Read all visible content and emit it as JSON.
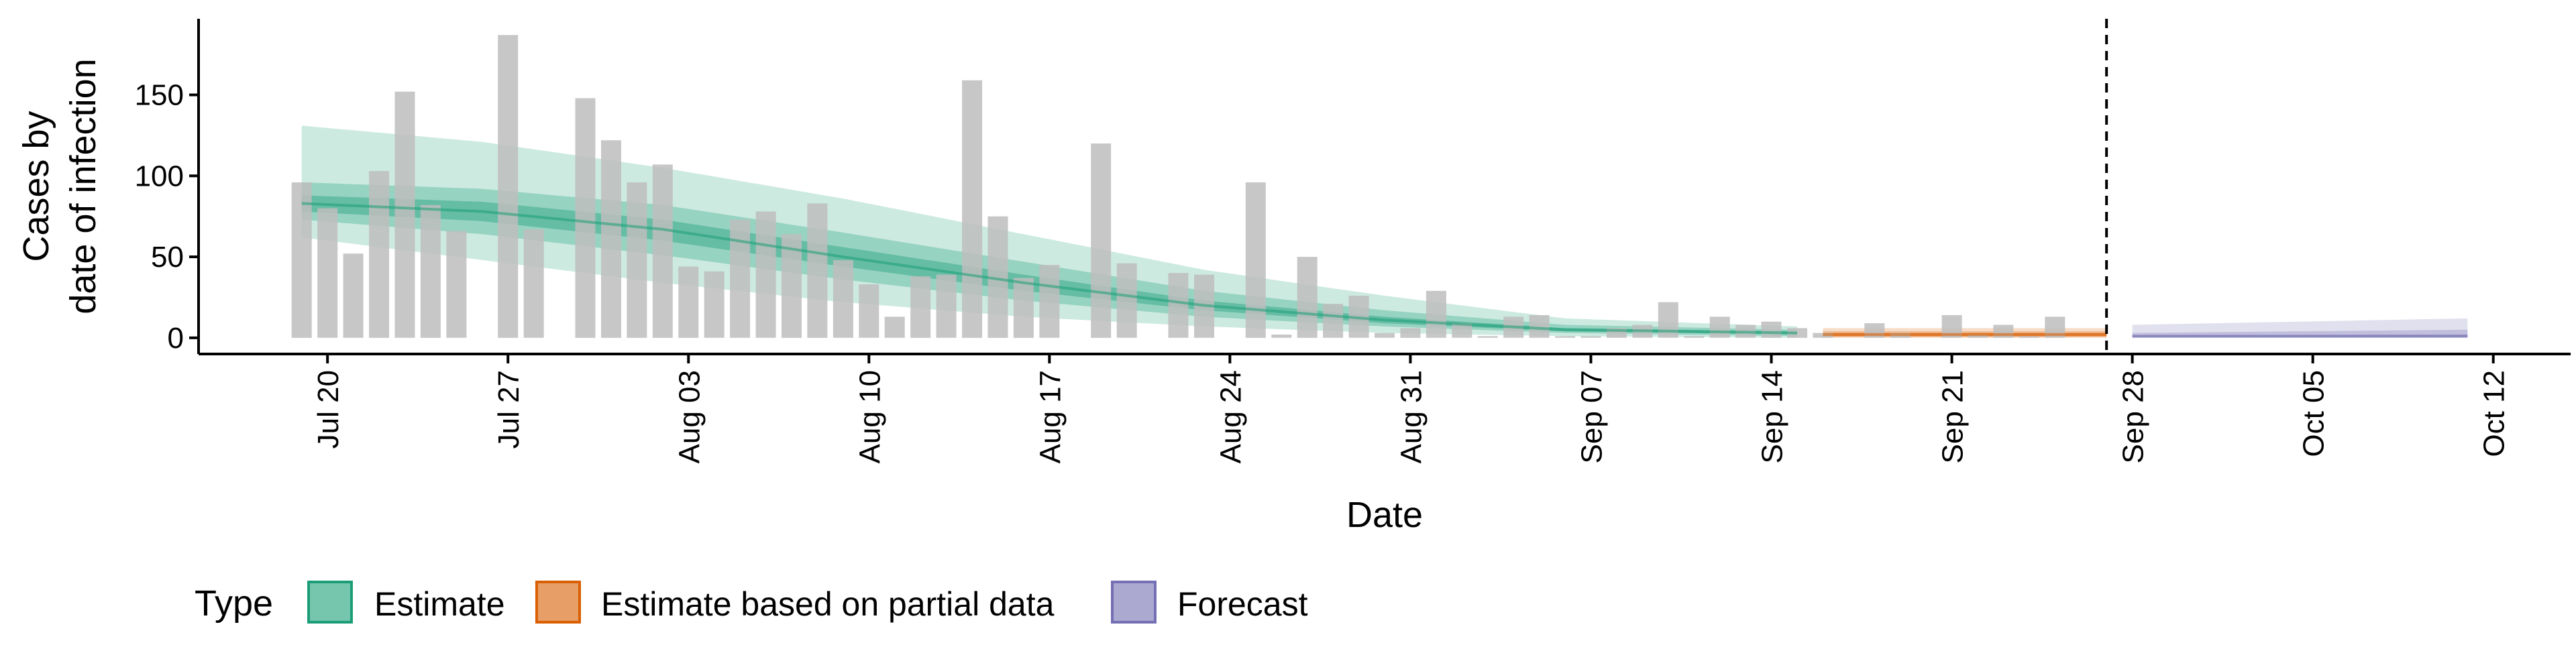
{
  "chart_data": {
    "type": "bar",
    "xlabel": "Date",
    "ylabel_lines": [
      "Cases by",
      "date of infection"
    ],
    "ylim": [
      -10,
      197
    ],
    "y_ticks": [
      0,
      50,
      100,
      150
    ],
    "x_range": [
      "2020-07-15",
      "2020-10-15"
    ],
    "x_ticks": [
      {
        "date": "2020-07-20",
        "label": "Jul 20"
      },
      {
        "date": "2020-07-27",
        "label": "Jul 27"
      },
      {
        "date": "2020-08-03",
        "label": "Aug 03"
      },
      {
        "date": "2020-08-10",
        "label": "Aug 10"
      },
      {
        "date": "2020-08-17",
        "label": "Aug 17"
      },
      {
        "date": "2020-08-24",
        "label": "Aug 24"
      },
      {
        "date": "2020-08-31",
        "label": "Aug 31"
      },
      {
        "date": "2020-09-07",
        "label": "Sep 07"
      },
      {
        "date": "2020-09-14",
        "label": "Sep 14"
      },
      {
        "date": "2020-09-21",
        "label": "Sep 21"
      },
      {
        "date": "2020-09-28",
        "label": "Sep 28"
      },
      {
        "date": "2020-10-05",
        "label": "Oct 05"
      },
      {
        "date": "2020-10-12",
        "label": "Oct 12"
      }
    ],
    "bars": {
      "start_date": "2020-07-19",
      "color": "#bdbdbd",
      "values": [
        96,
        80,
        52,
        103,
        152,
        82,
        66,
        0,
        187,
        67,
        0,
        148,
        122,
        96,
        107,
        44,
        41,
        73,
        78,
        64,
        83,
        48,
        33,
        13,
        38,
        39,
        159,
        75,
        37,
        45,
        0,
        120,
        46,
        0,
        40,
        39,
        0,
        96,
        2,
        50,
        21,
        26,
        3,
        6,
        29,
        9,
        1,
        13,
        14,
        1,
        1,
        6,
        8,
        22,
        1,
        13,
        8,
        10,
        6,
        3,
        0,
        9,
        3,
        0,
        14,
        2,
        8,
        1,
        13
      ]
    },
    "vline_date": "2020-09-27",
    "series": [
      {
        "name": "Estimate",
        "color": "#1b9e77",
        "x_start": "2020-07-19",
        "x_end": "2020-09-15",
        "anchors_x": [
          "2020-07-19",
          "2020-07-26",
          "2020-08-02",
          "2020-08-09",
          "2020-08-16",
          "2020-08-23",
          "2020-08-30",
          "2020-09-06",
          "2020-09-15"
        ],
        "median": [
          83,
          78,
          67,
          50,
          34,
          20,
          11,
          5,
          3
        ],
        "inner_lo": [
          78,
          72,
          60,
          44,
          29,
          17,
          9,
          4,
          2
        ],
        "inner_hi": [
          88,
          84,
          73,
          56,
          39,
          23,
          13,
          6,
          4
        ],
        "mid_lo": [
          73,
          64,
          51,
          36,
          23,
          13,
          7,
          3,
          1
        ],
        "mid_hi": [
          96,
          92,
          82,
          65,
          47,
          29,
          17,
          8,
          5
        ],
        "outer_lo": [
          62,
          48,
          34,
          22,
          13,
          7,
          3,
          1,
          0
        ],
        "outer_hi": [
          131,
          121,
          105,
          86,
          64,
          42,
          26,
          12,
          7
        ]
      },
      {
        "name": "Estimate based on partial data",
        "color": "#d95f02",
        "x_start": "2020-09-16",
        "x_end": "2020-09-27",
        "median": [
          2,
          2
        ],
        "inner_lo": [
          1,
          1
        ],
        "inner_hi": [
          3,
          3
        ],
        "mid_lo": [
          0.5,
          0.5
        ],
        "mid_hi": [
          4,
          4
        ],
        "outer_lo": [
          0,
          0
        ],
        "outer_hi": [
          6,
          6
        ]
      },
      {
        "name": "Forecast",
        "color": "#7570b3",
        "x_start": "2020-09-28",
        "x_end": "2020-10-11",
        "median": [
          1,
          1
        ],
        "inner_lo": [
          0.5,
          0.5
        ],
        "inner_hi": [
          1.5,
          2
        ],
        "mid_lo": [
          0,
          0
        ],
        "mid_hi": [
          3,
          5
        ],
        "outer_lo": [
          0,
          0
        ],
        "outer_hi": [
          8,
          12
        ]
      }
    ],
    "legend": {
      "title": "Type",
      "position": "bottom",
      "items": [
        {
          "label": "Estimate",
          "color": "#1b9e77"
        },
        {
          "label": "Estimate based on partial data",
          "color": "#d95f02"
        },
        {
          "label": "Forecast",
          "color": "#7570b3"
        }
      ]
    }
  }
}
